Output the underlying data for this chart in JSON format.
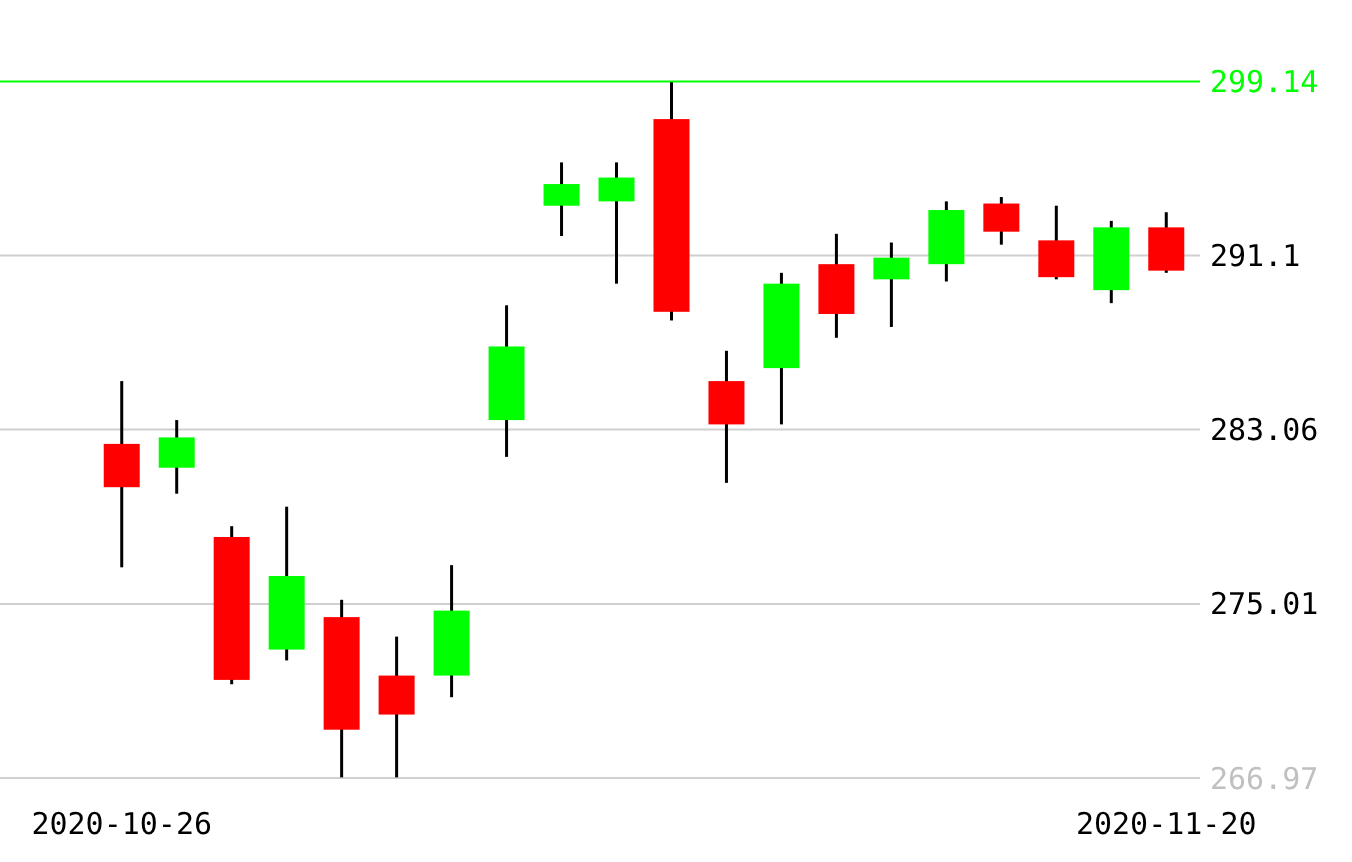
{
  "chart_data": {
    "type": "candlestick",
    "categories": [
      "2020-10-26",
      null,
      null,
      null,
      null,
      null,
      null,
      null,
      null,
      null,
      null,
      null,
      null,
      null,
      null,
      null,
      null,
      null,
      null,
      "2020-11-20"
    ],
    "ohlc": [
      [
        282.4,
        285.3,
        276.7,
        280.4
      ],
      [
        281.3,
        283.5,
        280.1,
        282.7
      ],
      [
        278.1,
        278.6,
        271.3,
        271.5
      ],
      [
        272.9,
        279.5,
        272.4,
        276.3
      ],
      [
        274.4,
        275.2,
        267.0,
        269.2
      ],
      [
        271.7,
        273.5,
        267.0,
        269.9
      ],
      [
        271.7,
        276.8,
        270.7,
        274.7
      ],
      [
        283.5,
        288.8,
        281.8,
        286.9
      ],
      [
        293.4,
        295.4,
        292.0,
        294.4
      ],
      [
        293.6,
        295.4,
        289.8,
        294.7
      ],
      [
        297.4,
        299.1,
        288.1,
        288.5
      ],
      [
        285.3,
        286.7,
        280.6,
        283.3
      ],
      [
        285.9,
        290.3,
        283.3,
        289.8
      ],
      [
        290.7,
        292.1,
        287.3,
        288.4
      ],
      [
        290.0,
        291.7,
        287.8,
        291.0
      ],
      [
        290.7,
        293.6,
        289.9,
        293.2
      ],
      [
        293.5,
        293.8,
        291.6,
        292.2
      ],
      [
        291.8,
        293.4,
        290.0,
        290.1
      ],
      [
        289.5,
        292.7,
        288.9,
        292.4
      ],
      [
        292.4,
        293.1,
        290.3,
        290.4
      ]
    ],
    "colors": [
      "#ff0000",
      "#00ff00",
      "#ff0000",
      "#00ff00",
      "#ff0000",
      "#ff0000",
      "#00ff00",
      "#00ff00",
      "#00ff00",
      "#00ff00",
      "#ff0000",
      "#ff0000",
      "#00ff00",
      "#ff0000",
      "#00ff00",
      "#00ff00",
      "#ff0000",
      "#ff0000",
      "#00ff00",
      "#ff0000"
    ],
    "ylim": [
      266.97,
      302.9
    ],
    "yticks": [
      266.97,
      275.01,
      283.06,
      291.1
    ],
    "grid": "y",
    "ref_lines": [
      {
        "axis": "y",
        "value": 299.14,
        "label": "299.14",
        "color": "#00ff00"
      }
    ]
  }
}
